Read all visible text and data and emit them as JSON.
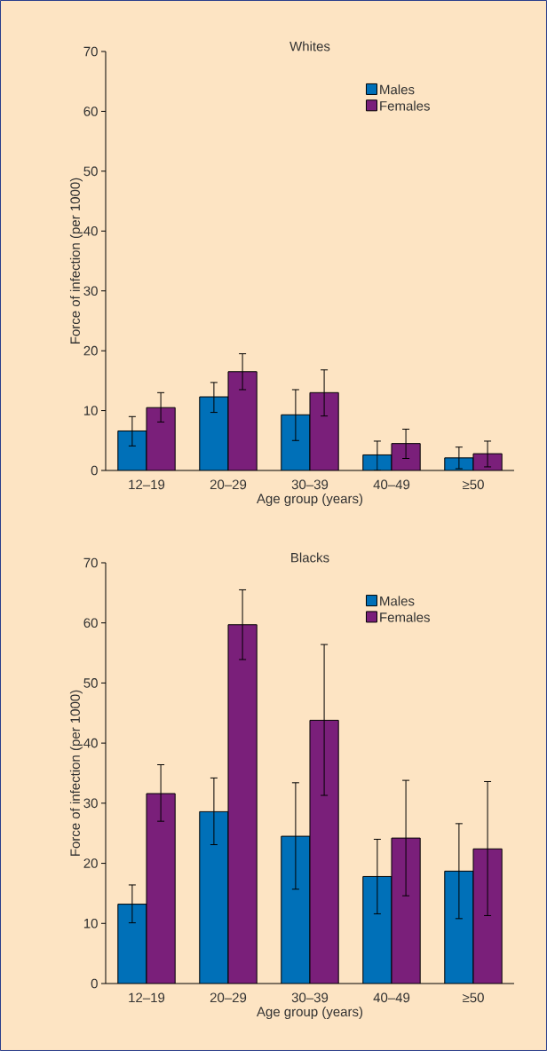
{
  "chart_data": [
    {
      "type": "bar",
      "title": "Whites",
      "xlabel": "Age group (years)",
      "ylabel": "Force of infection (per 1000)",
      "categories": [
        "12–19",
        "20–29",
        "30–39",
        "40–49",
        "≥50"
      ],
      "ylim": [
        0,
        70
      ],
      "yticks": [
        0,
        10,
        20,
        30,
        40,
        50,
        60,
        70
      ],
      "legend": "top right",
      "series": [
        {
          "name": "Males",
          "color": "#0070b8",
          "values": [
            6.6,
            12.3,
            9.3,
            2.6,
            2.1
          ],
          "errors": [
            [
              4.1,
              9.0
            ],
            [
              9.7,
              14.7
            ],
            [
              5.0,
              13.5
            ],
            [
              0,
              4.9
            ],
            [
              0.3,
              3.9
            ]
          ]
        },
        {
          "name": "Females",
          "color": "#7a1f7a",
          "values": [
            10.5,
            16.5,
            13.0,
            4.5,
            2.8
          ],
          "errors": [
            [
              8.1,
              13.0
            ],
            [
              13.5,
              19.5
            ],
            [
              9.1,
              16.8
            ],
            [
              2.0,
              6.9
            ],
            [
              0.6,
              4.9
            ]
          ]
        }
      ]
    },
    {
      "type": "bar",
      "title": "Blacks",
      "xlabel": "Age group (years)",
      "ylabel": "Force of infection (per 1000)",
      "categories": [
        "12–19",
        "20–29",
        "30–39",
        "40–49",
        "≥50"
      ],
      "ylim": [
        0,
        70
      ],
      "yticks": [
        0,
        10,
        20,
        30,
        40,
        50,
        60,
        70
      ],
      "legend": "top right",
      "series": [
        {
          "name": "Males",
          "color": "#0070b8",
          "values": [
            13.2,
            28.6,
            24.5,
            17.8,
            18.7
          ],
          "errors": [
            [
              10.1,
              16.4
            ],
            [
              23.1,
              34.2
            ],
            [
              15.7,
              33.4
            ],
            [
              11.6,
              24.0
            ],
            [
              10.8,
              26.6
            ]
          ]
        },
        {
          "name": "Females",
          "color": "#7a1f7a",
          "values": [
            31.6,
            59.7,
            43.8,
            24.2,
            22.4
          ],
          "errors": [
            [
              27.0,
              36.4
            ],
            [
              53.9,
              65.5
            ],
            [
              31.3,
              56.4
            ],
            [
              14.6,
              33.8
            ],
            [
              11.3,
              33.6
            ]
          ]
        }
      ]
    }
  ]
}
